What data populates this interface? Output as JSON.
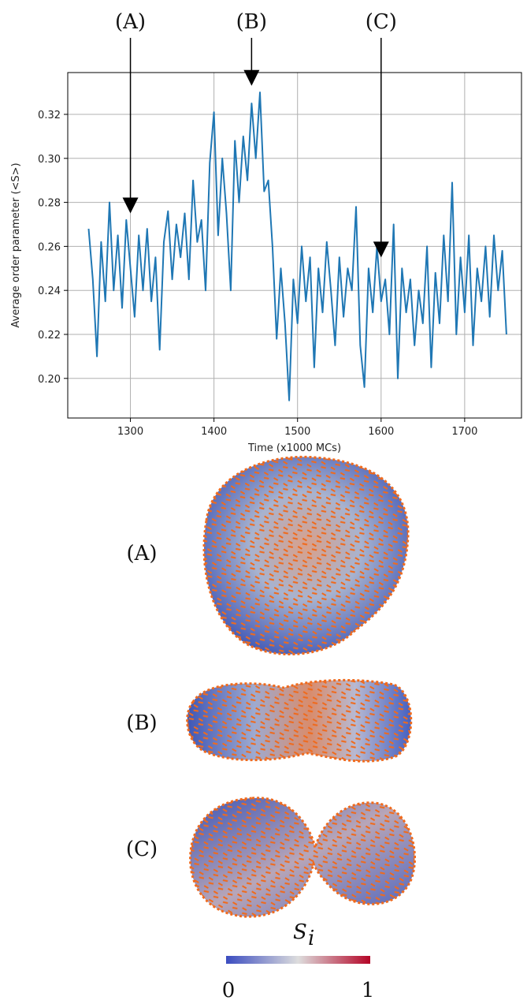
{
  "chart_data": {
    "type": "line",
    "x_label": "Time (x1000 MCs)",
    "y_label": "Average order parameter (<S>)",
    "x": [
      1250,
      1255,
      1260,
      1265,
      1270,
      1275,
      1280,
      1285,
      1290,
      1295,
      1300,
      1305,
      1310,
      1315,
      1320,
      1325,
      1330,
      1335,
      1340,
      1345,
      1350,
      1355,
      1360,
      1365,
      1370,
      1375,
      1380,
      1385,
      1390,
      1395,
      1400,
      1405,
      1410,
      1415,
      1420,
      1425,
      1430,
      1435,
      1440,
      1445,
      1450,
      1455,
      1460,
      1465,
      1470,
      1475,
      1480,
      1485,
      1490,
      1495,
      1500,
      1505,
      1510,
      1515,
      1520,
      1525,
      1530,
      1535,
      1540,
      1545,
      1550,
      1555,
      1560,
      1565,
      1570,
      1575,
      1580,
      1585,
      1590,
      1595,
      1600,
      1605,
      1610,
      1615,
      1620,
      1625,
      1630,
      1635,
      1640,
      1645,
      1650,
      1655,
      1660,
      1665,
      1670,
      1675,
      1680,
      1685,
      1690,
      1695,
      1700,
      1705,
      1710,
      1715,
      1720,
      1725,
      1730,
      1735,
      1740,
      1745,
      1750
    ],
    "series": [
      {
        "color": "#1f77b4",
        "values": [
          0.268,
          0.245,
          0.21,
          0.262,
          0.235,
          0.28,
          0.24,
          0.265,
          0.232,
          0.272,
          0.25,
          0.228,
          0.265,
          0.24,
          0.268,
          0.235,
          0.255,
          0.213,
          0.262,
          0.276,
          0.245,
          0.27,
          0.255,
          0.275,
          0.245,
          0.29,
          0.262,
          0.272,
          0.24,
          0.298,
          0.321,
          0.265,
          0.3,
          0.275,
          0.24,
          0.308,
          0.28,
          0.31,
          0.29,
          0.325,
          0.3,
          0.33,
          0.285,
          0.29,
          0.26,
          0.218,
          0.25,
          0.225,
          0.19,
          0.245,
          0.225,
          0.26,
          0.235,
          0.255,
          0.205,
          0.25,
          0.23,
          0.262,
          0.24,
          0.215,
          0.255,
          0.228,
          0.25,
          0.24,
          0.278,
          0.215,
          0.196,
          0.25,
          0.23,
          0.26,
          0.235,
          0.245,
          0.22,
          0.27,
          0.2,
          0.25,
          0.23,
          0.245,
          0.215,
          0.24,
          0.225,
          0.26,
          0.205,
          0.248,
          0.225,
          0.265,
          0.235,
          0.289,
          0.22,
          0.255,
          0.23,
          0.265,
          0.215,
          0.25,
          0.235,
          0.26,
          0.228,
          0.265,
          0.24,
          0.258,
          0.22
        ]
      }
    ],
    "xlim": [
      1225,
      1768
    ],
    "ylim": [
      0.182,
      0.339
    ],
    "xticks": [
      1300,
      1400,
      1500,
      1600,
      1700
    ],
    "yticks": [
      {
        "value": 0.2,
        "label": "0.20"
      },
      0.22,
      0.24,
      0.26,
      0.28,
      {
        "value": 0.3,
        "label": "0.30"
      },
      0.32
    ],
    "grid": true,
    "annotations": [
      {
        "label": "(A)",
        "x": 1300,
        "y": 0.275
      },
      {
        "label": "(B)",
        "x": 1445,
        "y": 0.333
      },
      {
        "label": "(C)",
        "x": 1600,
        "y": 0.255
      }
    ]
  },
  "snapshots": [
    {
      "label": "(A)"
    },
    {
      "label": "(B)"
    },
    {
      "label": "(C)"
    }
  ],
  "colorbar": {
    "symbol": "S",
    "subscript": "i",
    "ticks": [
      0,
      1
    ]
  }
}
